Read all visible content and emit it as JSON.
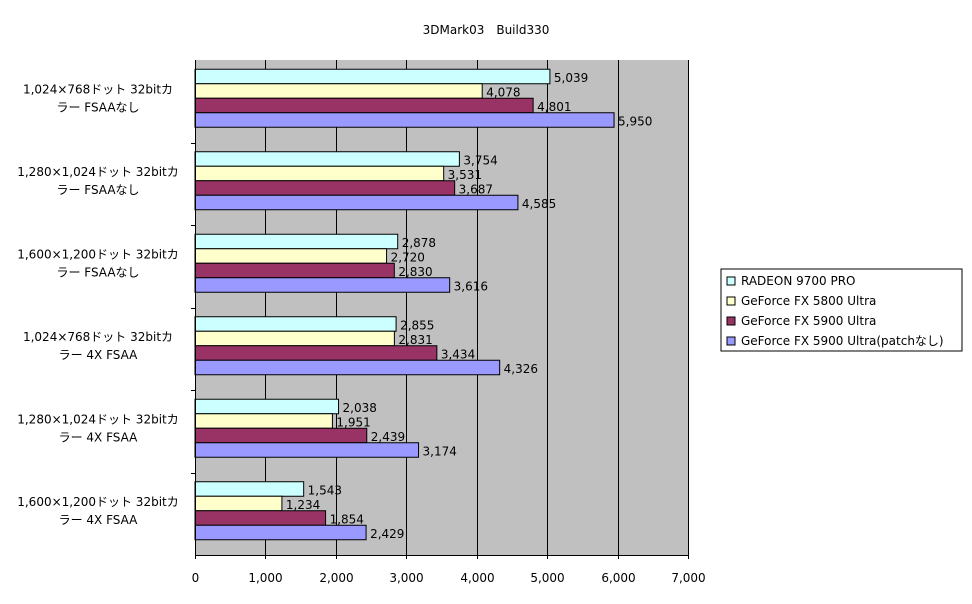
{
  "chart_data": {
    "type": "bar",
    "orientation": "horizontal",
    "title": "3DMark03　Build330",
    "xlabel": "",
    "ylabel": "",
    "xlim": [
      0,
      7000
    ],
    "x_ticks": [
      "0",
      "1,000",
      "2,000",
      "3,000",
      "4,000",
      "5,000",
      "6,000",
      "7,000"
    ],
    "grid": "vertical major gridlines",
    "plot_background": "#c0c0c0",
    "legend_position": "right",
    "categories": [
      [
        "1,024×768ドット 32bitカ",
        "ラー FSAAなし"
      ],
      [
        "1,280×1,024ドット 32bitカ",
        "ラー FSAAなし"
      ],
      [
        "1,600×1,200ドット 32bitカ",
        "ラー FSAAなし"
      ],
      [
        "1,024×768ドット 32bitカ",
        "ラー 4X FSAA"
      ],
      [
        "1,280×1,024ドット 32bitカ",
        "ラー 4X FSAA"
      ],
      [
        "1,600×1,200ドット 32bitカ",
        "ラー 4X FSAA"
      ]
    ],
    "series": [
      {
        "name": "RADEON 9700 PRO",
        "color": "#ccffff",
        "values": [
          5039,
          3754,
          2878,
          2855,
          2038,
          1543
        ],
        "labels": [
          "5,039",
          "3,754",
          "2,878",
          "2,855",
          "2,038",
          "1,543"
        ]
      },
      {
        "name": "GeForce FX 5800 Ultra",
        "color": "#ffffcc",
        "values": [
          4078,
          3531,
          2720,
          2831,
          1951,
          1234
        ],
        "labels": [
          "4,078",
          "3,531",
          "2,720",
          "2,831",
          "1,951",
          "1,234"
        ]
      },
      {
        "name": "GeForce FX 5900 Ultra",
        "color": "#993366",
        "values": [
          4801,
          3687,
          2830,
          3434,
          2439,
          1854
        ],
        "labels": [
          "4,801",
          "3,687",
          "2,830",
          "3,434",
          "2,439",
          "1,854"
        ]
      },
      {
        "name": "GeForce FX 5900 Ultra(patchなし)",
        "color": "#9999ff",
        "values": [
          5950,
          4585,
          3616,
          4326,
          3174,
          2429
        ],
        "labels": [
          "5,950",
          "4,585",
          "3,616",
          "4,326",
          "3,174",
          "2,429"
        ]
      }
    ]
  }
}
